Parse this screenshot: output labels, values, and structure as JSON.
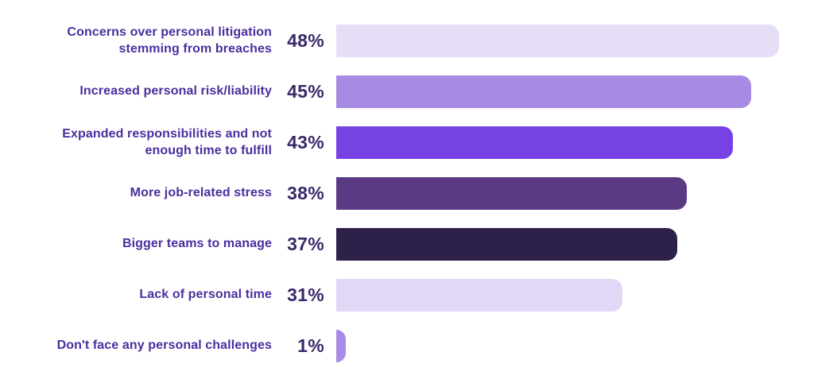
{
  "chart_data": {
    "type": "bar",
    "orientation": "horizontal",
    "title": "",
    "xlabel": "",
    "ylabel": "",
    "xlim": [
      0,
      50
    ],
    "grid": false,
    "legend": false,
    "categories": [
      "Concerns over personal litigation\nstemming from breaches",
      "Increased personal risk/liability",
      "Expanded responsibilities and not\nenough time to fulfill",
      "More job-related stress",
      "Bigger teams to manage",
      "Lack of personal time",
      "Don't face any personal challenges"
    ],
    "values": [
      48,
      45,
      43,
      38,
      37,
      31,
      1
    ],
    "value_labels": [
      "48%",
      "45%",
      "43%",
      "38%",
      "37%",
      "31%",
      "1%"
    ],
    "bar_colors": [
      "#E6DDF7",
      "#A78AE4",
      "#7742E3",
      "#5B3A84",
      "#2D2149",
      "#E3D7F7",
      "#A88BE7"
    ],
    "label_color": "#4B2E9E",
    "value_color": "#392869",
    "background_color": "#FFFFFF"
  }
}
